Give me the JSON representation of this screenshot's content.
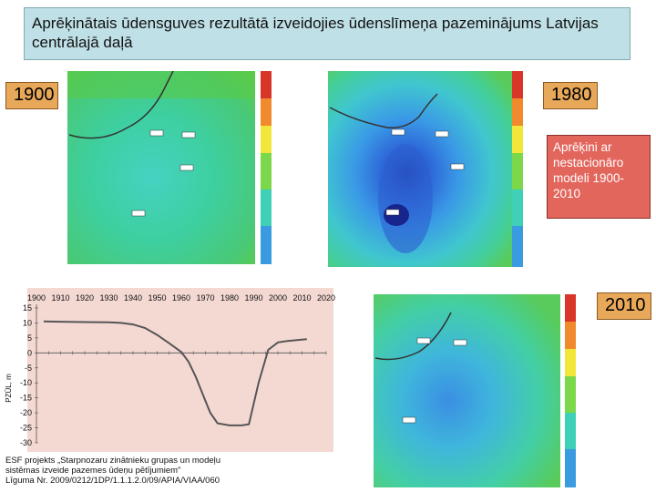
{
  "title": "Aprēķinātais ūdensguves rezultātā izveidojies ūdenslīmeņa pazeminājums Latvijas centrālajā daļā",
  "labels": {
    "m1900": "1900",
    "m1980": "1980",
    "m2010": "2010"
  },
  "note": "Aprēķini ar nestacionāro modeli 1900-2010",
  "footer": {
    "line1": "ESF projekts „Starpnozaru zinātnieku grupas un modeļu",
    "line2": "sistēmas izveide pazemes ūdeņu pētījumiem\"",
    "line3": "Līguma Nr. 2009/0212/1DP/1.1.1.2.0/09/APIA/VIAA/060"
  },
  "colors": {
    "titleBg": "#bfe0e6",
    "labelBg": "#e8a85a",
    "noteBg": "#e3665d",
    "chartBg": "#f4d9d3",
    "line": "#555555"
  },
  "chart_data": {
    "type": "line",
    "ylabel": "PZŪL, m",
    "x_ticks": [
      1900,
      1910,
      1920,
      1930,
      1940,
      1950,
      1960,
      1970,
      1980,
      1990,
      2000,
      2010,
      2020
    ],
    "y_ticks": [
      15,
      10,
      5,
      0,
      -5,
      -10,
      -15,
      -20,
      -25,
      -30
    ],
    "xlim": [
      1900,
      2020
    ],
    "ylim": [
      -30,
      15
    ],
    "grid": false,
    "series": [
      {
        "x": [
          1903,
          1910,
          1920,
          1930,
          1935,
          1940,
          1945,
          1950,
          1955,
          1960,
          1963,
          1966,
          1969,
          1972,
          1975,
          1980,
          1985,
          1988,
          1992,
          1996,
          2000,
          2004,
          2008,
          2012
        ],
        "y": [
          10.5,
          10.4,
          10.3,
          10.2,
          10.0,
          9.5,
          8.3,
          6.0,
          3.2,
          0.3,
          -3,
          -8,
          -14,
          -20,
          -23.5,
          -24.2,
          -24.2,
          -23.8,
          -10,
          1,
          3.5,
          4.0,
          4.3,
          4.6
        ]
      }
    ]
  }
}
